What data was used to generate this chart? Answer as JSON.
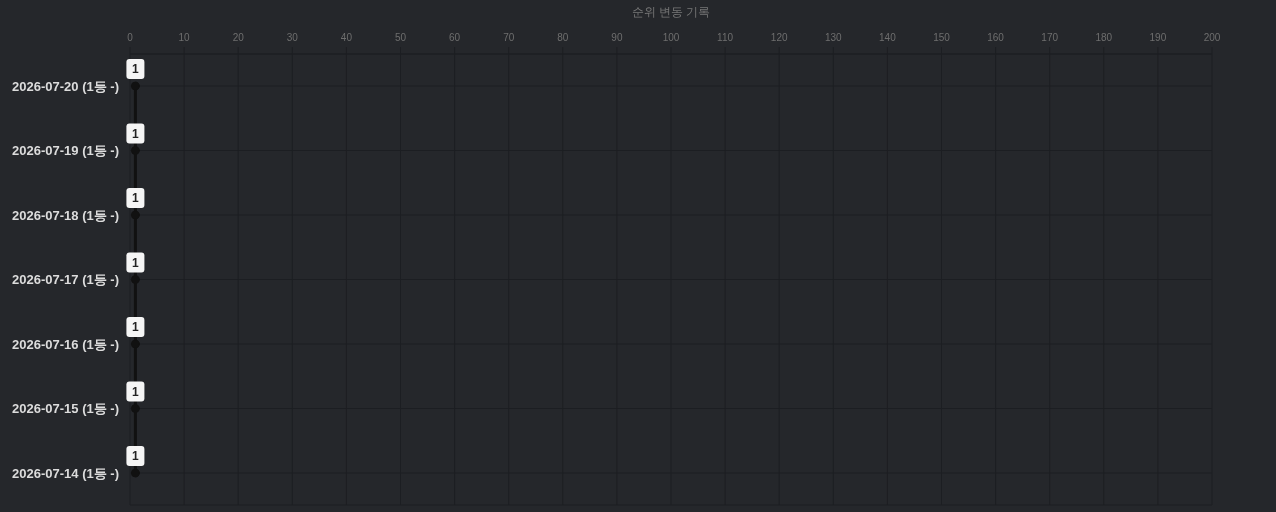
{
  "chart_data": {
    "type": "line",
    "xlabel": "순위 변동 기록",
    "orientation": "horizontal",
    "categories": [
      "2026-07-20 (1등 -)",
      "2026-07-19 (1등 -)",
      "2026-07-18 (1등 -)",
      "2026-07-17 (1등 -)",
      "2026-07-16 (1등 -)",
      "2026-07-15 (1등 -)",
      "2026-07-14 (1등 -)"
    ],
    "values": [
      1,
      1,
      1,
      1,
      1,
      1,
      1
    ],
    "color": "#111111",
    "xlim": [
      0,
      200
    ],
    "xticks": [
      0,
      10,
      20,
      30,
      40,
      50,
      60,
      70,
      80,
      90,
      100,
      110,
      120,
      130,
      140,
      150,
      160,
      170,
      180,
      190,
      200
    ],
    "grid": true,
    "marker": "circle",
    "line_style": "solid",
    "data_labels": true
  }
}
